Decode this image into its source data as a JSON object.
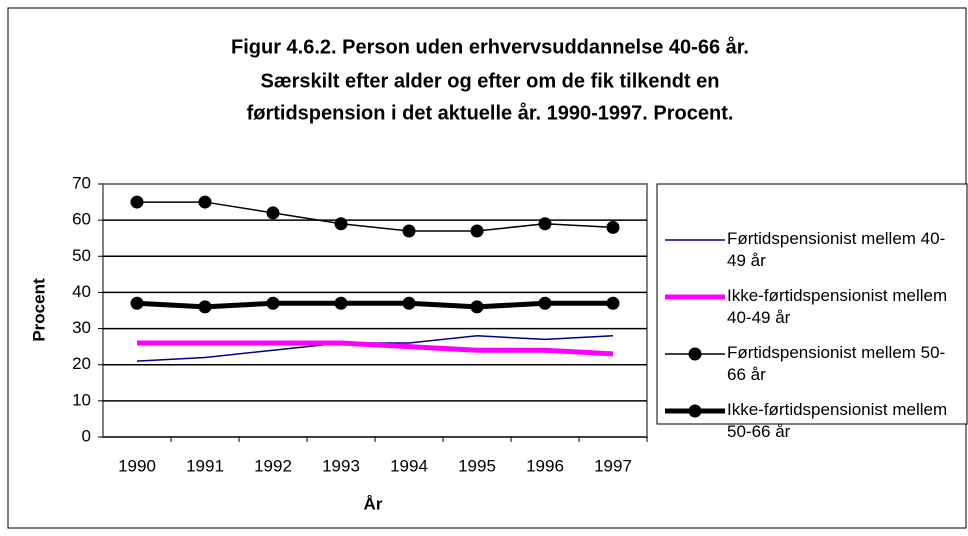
{
  "chart_data": {
    "type": "line",
    "title": [
      "Figur 4.6.2. Person uden erhvervsuddannelse 40-66 år.",
      "Særskilt efter alder og efter om de fik tilkendt en",
      "førtidspension i det aktuelle år. 1990-1997. Procent."
    ],
    "x_label": "År",
    "y_label": "Procent",
    "categories": [
      "1990",
      "1991",
      "1992",
      "1993",
      "1994",
      "1995",
      "1996",
      "1997"
    ],
    "series": [
      {
        "name": "Førtidspensionist mellem 40-49 år",
        "color": "#000080",
        "line_width": 1.5,
        "markers": false,
        "values": [
          21,
          22,
          24,
          26,
          26,
          28,
          27,
          28
        ]
      },
      {
        "name": "Ikke-førtidspensionist mellem 40-49 år",
        "color": "#ff00ff",
        "line_width": 5,
        "markers": false,
        "values": [
          26,
          26,
          26,
          26,
          25,
          24,
          24,
          23
        ]
      },
      {
        "name": "Førtidspensionist mellem 50-66 år",
        "color": "#000000",
        "line_width": 1.5,
        "markers": true,
        "values": [
          65,
          65,
          62,
          59,
          57,
          57,
          59,
          58
        ]
      },
      {
        "name": "Ikke-førtidspensionist mellem 50-66 år",
        "color": "#000000",
        "line_width": 5,
        "markers": true,
        "values": [
          37,
          36,
          37,
          37,
          37,
          36,
          37,
          37
        ]
      }
    ],
    "ylim": [
      0,
      70
    ],
    "yticks": [
      0,
      10,
      20,
      30,
      40,
      50,
      60,
      70
    ],
    "grid": true,
    "legend": "right"
  }
}
